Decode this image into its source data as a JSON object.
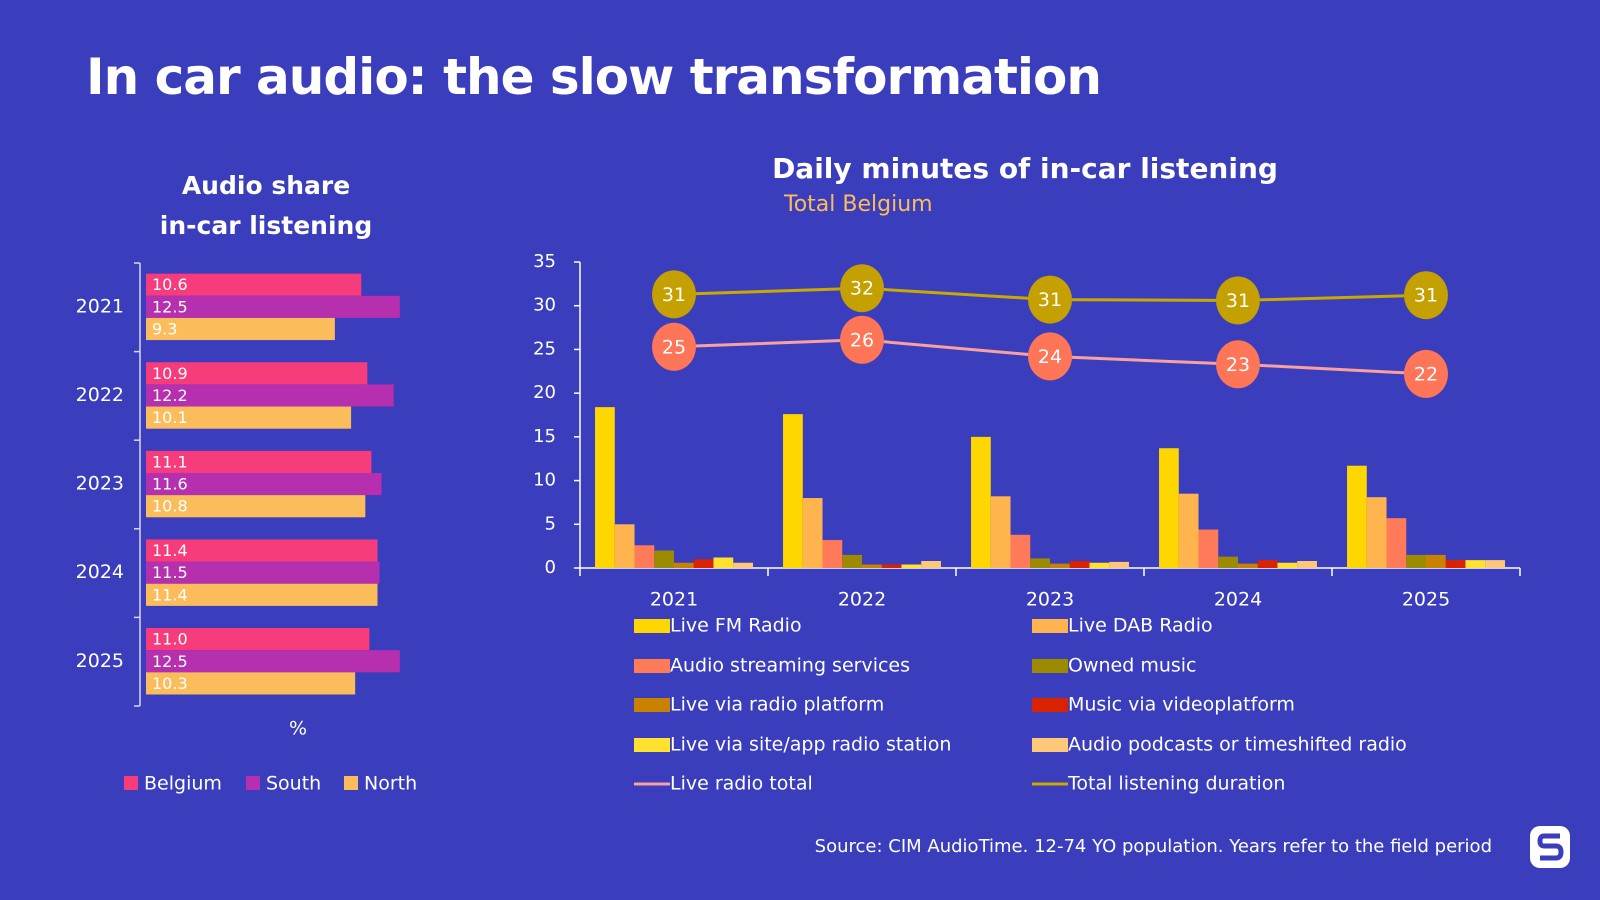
{
  "title": "In car audio: the slow transformation",
  "source": "Source: CIM AudioTime. 12-74 YO population. Years refer to the field period",
  "chart_data": [
    {
      "type": "hbar",
      "title": "Audio share\nin-car listening",
      "categories": [
        "2021",
        "2022",
        "2023",
        "2024",
        "2025"
      ],
      "xlabel": "%",
      "xlim": [
        0,
        13
      ],
      "legend": "bottom",
      "series": [
        {
          "name": "Belgium",
          "color": "#f73c7c",
          "label_color": "#ffffff",
          "values": [
            10.6,
            10.9,
            11.1,
            11.4,
            11.0
          ],
          "value_labels": [
            "10.6",
            "10.9",
            "11.1",
            "11.4",
            "11.0"
          ]
        },
        {
          "name": "South",
          "color": "#b52fae",
          "label_color": "#ffffff",
          "values": [
            12.5,
            12.2,
            11.6,
            11.5,
            12.5
          ]
        },
        {
          "name": "North",
          "color": "#fbbd5c",
          "label_color": "#1a1a1a",
          "values": [
            9.3,
            10.1,
            10.8,
            11.4,
            10.3
          ]
        }
      ]
    },
    {
      "type": "bar",
      "title": "Daily minutes of in-car listening",
      "subtitle": "Total Belgium",
      "categories": [
        "2021",
        "2022",
        "2023",
        "2024",
        "2025"
      ],
      "ylim": [
        0,
        35
      ],
      "yticks": [
        0,
        5,
        10,
        15,
        20,
        25,
        30,
        35
      ],
      "grid": false,
      "legend": "bottom",
      "series": [
        {
          "name": "Live FM Radio",
          "color": "#ffd600",
          "values": [
            18.4,
            17.6,
            15.0,
            13.7,
            11.7
          ]
        },
        {
          "name": "Live DAB Radio",
          "color": "#ffb44e",
          "values": [
            5.0,
            8.0,
            8.2,
            8.5,
            8.1
          ]
        },
        {
          "name": "Audio streaming services",
          "color": "#ff7a58",
          "values": [
            2.6,
            3.2,
            3.8,
            4.4,
            5.7
          ]
        },
        {
          "name": "Owned music",
          "color": "#9c8a00",
          "values": [
            2.0,
            1.5,
            1.1,
            1.3,
            1.5
          ]
        },
        {
          "name": "Live via radio platform",
          "color": "#c98100",
          "values": [
            0.6,
            0.4,
            0.5,
            0.5,
            1.5
          ]
        },
        {
          "name": "Music via videoplatform",
          "color": "#d82200",
          "values": [
            1.0,
            0.4,
            0.8,
            0.9,
            0.9
          ]
        },
        {
          "name": "Live via site/app radio station",
          "color": "#ffe12e",
          "values": [
            1.2,
            0.4,
            0.6,
            0.6,
            0.9
          ]
        },
        {
          "name": "Audio podcasts or timeshifted radio",
          "color": "#ffc878",
          "values": [
            0.6,
            0.8,
            0.7,
            0.8,
            0.9
          ]
        },
        {
          "name": "Live radio total",
          "type": "line",
          "color": "#f9a0a0",
          "marker_color": "#ff7557",
          "label_color": "#ffffff",
          "values": [
            25.3,
            26.1,
            24.2,
            23.3,
            22.2
          ],
          "value_labels": [
            "25",
            "26",
            "24",
            "23",
            "22"
          ]
        },
        {
          "name": "Total listening duration",
          "type": "line",
          "color": "#c9a800",
          "marker_color": "#c4a000",
          "label_color": "#1a1a1a",
          "values": [
            31.3,
            32.0,
            30.7,
            30.6,
            31.2
          ],
          "value_labels": [
            "31",
            "32",
            "31",
            "31",
            "31"
          ]
        }
      ]
    }
  ]
}
